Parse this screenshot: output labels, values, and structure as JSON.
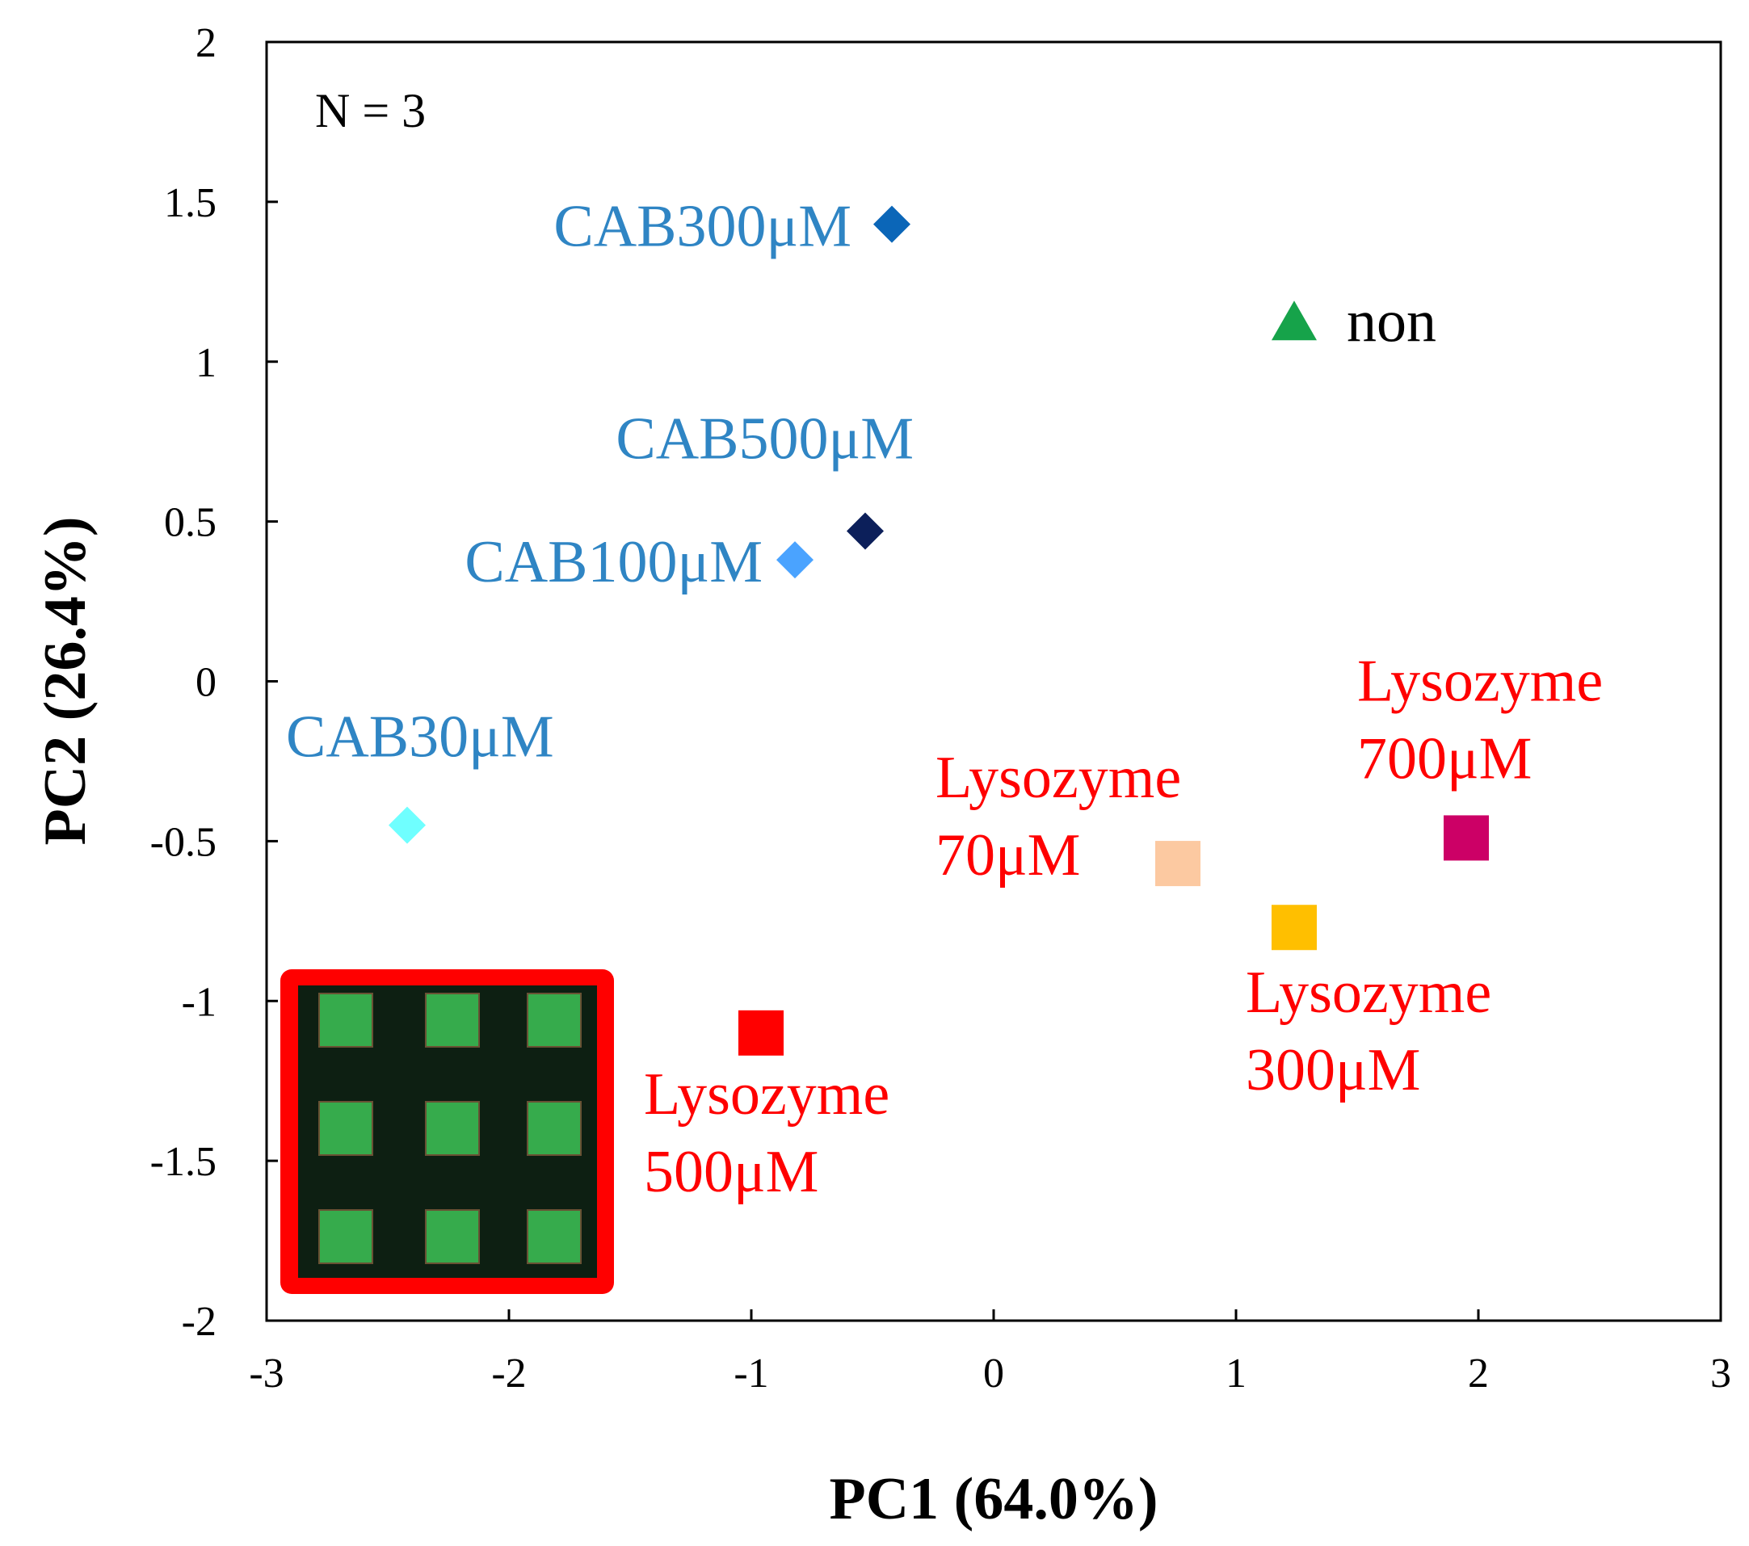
{
  "chart_data": {
    "type": "scatter",
    "title": "",
    "xlabel": "PC1 (64.0%)",
    "ylabel": "PC2 (26.4%)",
    "xlim": [
      -3,
      3
    ],
    "ylim": [
      -2,
      2
    ],
    "x_ticks": [
      -3,
      -2,
      -1,
      0,
      1,
      2,
      3
    ],
    "y_ticks": [
      -2,
      -1.5,
      -1,
      -0.5,
      0,
      0.5,
      1,
      1.5,
      2
    ],
    "x_tick_labels": [
      "-3",
      "-2",
      "-1",
      "0",
      "1",
      "2",
      "3"
    ],
    "y_tick_labels": [
      "-2",
      "-1.5",
      "-1",
      "-0.5",
      "0",
      "0.5",
      "1",
      "1.5",
      "2"
    ],
    "grid": false,
    "annotation": "N = 3",
    "inset": {
      "description": "fluorescence microarray image, 3x3 green spots",
      "border_color": "#ff0000",
      "spot_color": "#3ec457"
    },
    "series": [
      {
        "name": "CAB30μM",
        "label_lines": [
          "CAB30μM"
        ],
        "x": -2.42,
        "y": -0.45,
        "marker": "diamond",
        "color": "#6fffff",
        "label_color": "#2f85c4"
      },
      {
        "name": "CAB100μM",
        "label_lines": [
          "CAB100μM"
        ],
        "x": -0.82,
        "y": 0.38,
        "marker": "diamond",
        "color": "#4aa3ff",
        "label_color": "#2f85c4"
      },
      {
        "name": "CAB300μM",
        "label_lines": [
          "CAB300μM"
        ],
        "x": -0.42,
        "y": 1.43,
        "marker": "diamond",
        "color": "#0b66b8",
        "label_color": "#2f85c4"
      },
      {
        "name": "CAB500μM",
        "label_lines": [
          "CAB500μM"
        ],
        "x": -0.53,
        "y": 0.47,
        "marker": "diamond",
        "color": "#0c1f5a",
        "label_color": "#2f85c4"
      },
      {
        "name": "non",
        "label_lines": [
          "non"
        ],
        "x": 1.24,
        "y": 1.12,
        "marker": "triangle",
        "color": "#16a34a",
        "label_color": "#000000"
      },
      {
        "name": "Lysozyme 70μM",
        "label_lines": [
          "Lysozyme",
          "70μM"
        ],
        "x": 0.76,
        "y": -0.57,
        "marker": "square",
        "color": "#fcc9a1",
        "label_color": "#ff0000"
      },
      {
        "name": "Lysozyme 300μM",
        "label_lines": [
          "Lysozyme",
          "300μM"
        ],
        "x": 1.24,
        "y": -0.77,
        "marker": "square",
        "color": "#ffbf00",
        "label_color": "#ff0000"
      },
      {
        "name": "Lysozyme 500μM",
        "label_lines": [
          "Lysozyme",
          "500μM"
        ],
        "x": -0.96,
        "y": -1.1,
        "marker": "square",
        "color": "#ff0000",
        "label_color": "#ff0000"
      },
      {
        "name": "Lysozyme 700μM",
        "label_lines": [
          "Lysozyme",
          "700μM"
        ],
        "x": 1.95,
        "y": -0.49,
        "marker": "square",
        "color": "#cc0066",
        "label_color": "#ff0000"
      }
    ]
  }
}
